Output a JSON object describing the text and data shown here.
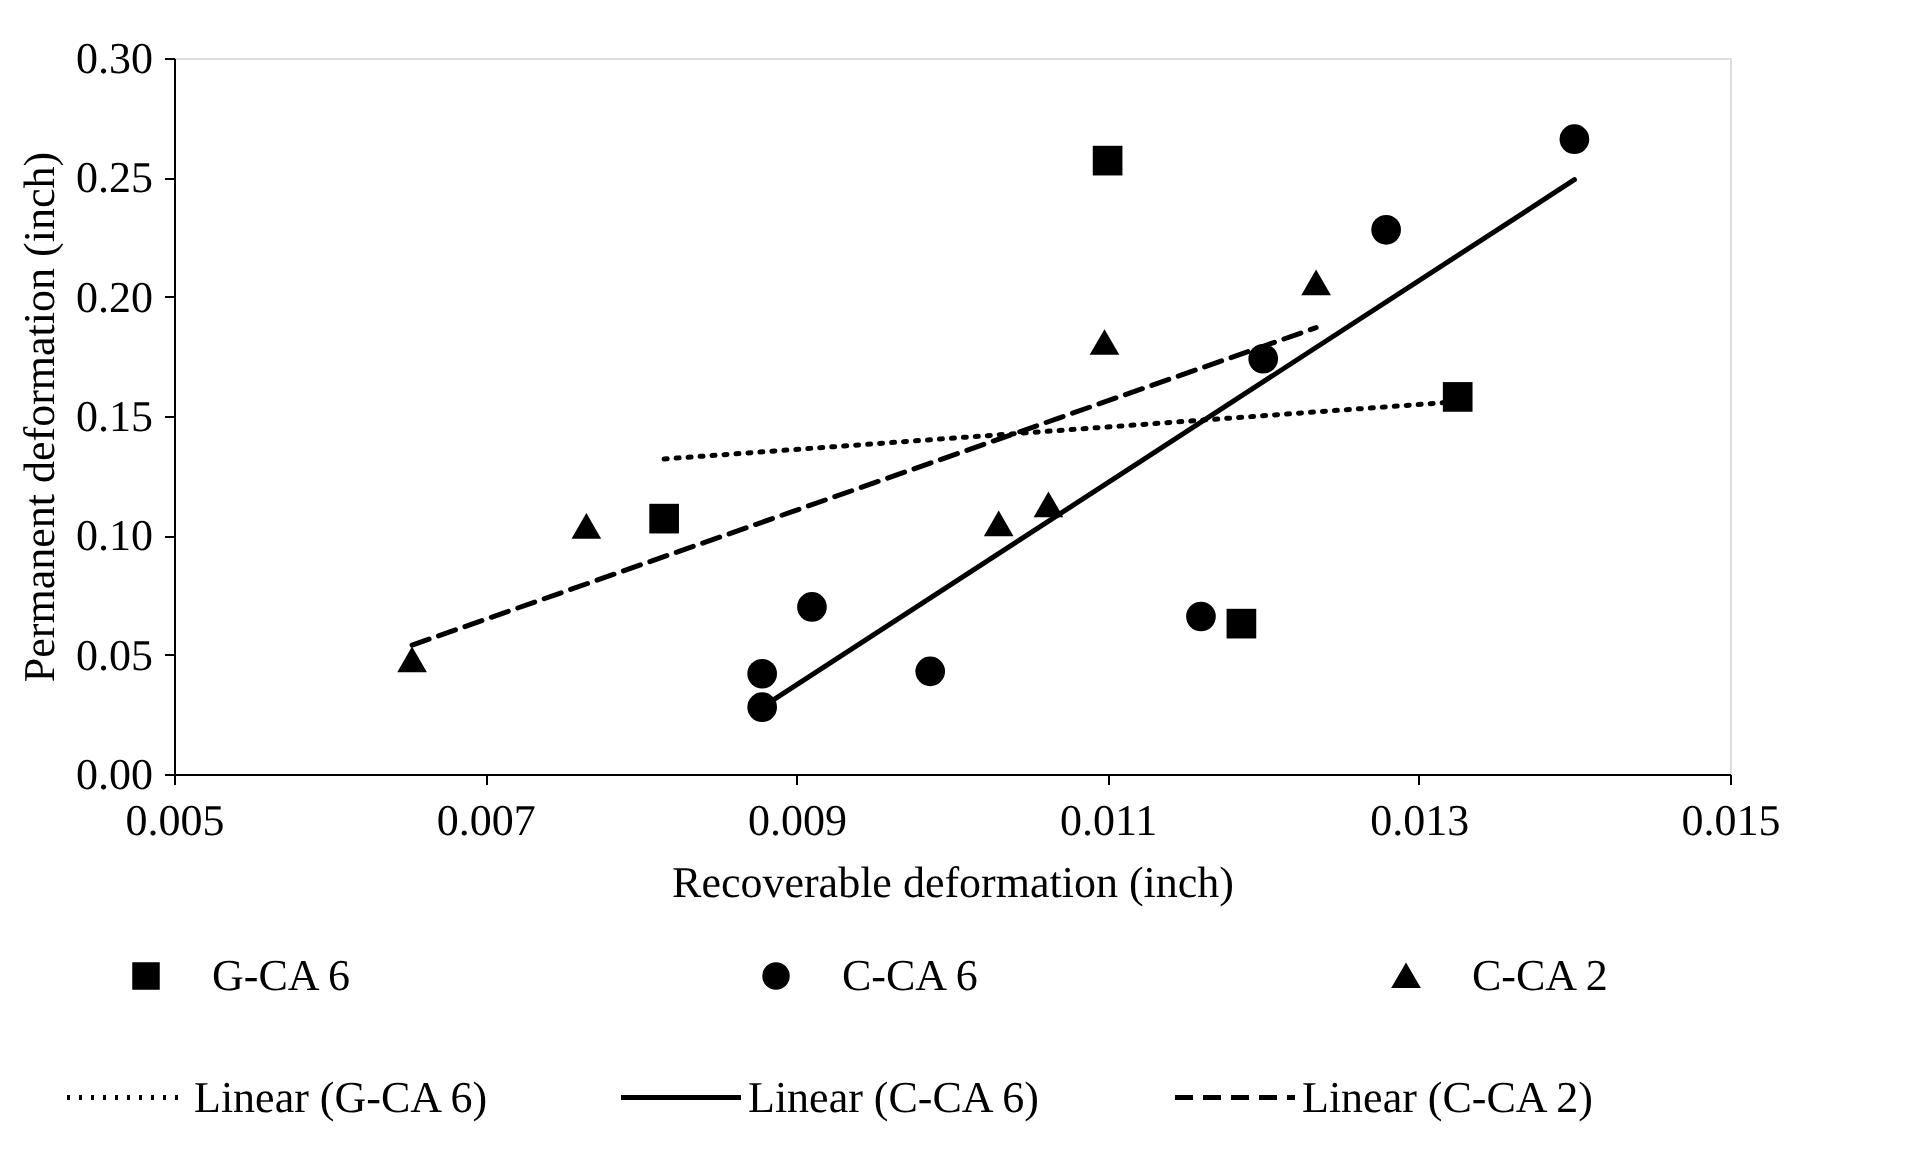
{
  "chart_data": {
    "type": "scatter",
    "xlabel": "Recoverable deformation (inch)",
    "ylabel": "Permanent deformation (inch)",
    "xlim": [
      0.005,
      0.015
    ],
    "xticks": [
      0.005,
      0.007,
      0.009,
      0.011,
      0.013,
      0.015
    ],
    "ylim": [
      0,
      0.3
    ],
    "yticks": [
      {
        "value": 0,
        "label": "0.00"
      },
      {
        "value": 0.05,
        "label": "0.05"
      },
      {
        "value": 0.1,
        "label": "0.10"
      },
      {
        "value": 0.15,
        "label": "0.15"
      },
      {
        "value": 0.2,
        "label": "0.20"
      },
      {
        "value": 0.25,
        "label": "0.25"
      },
      {
        "value": 0.3,
        "label": "0.30"
      }
    ],
    "grid": false,
    "legend": "bottom",
    "series": [
      {
        "name": "G-CA 6",
        "marker": "square",
        "color": "#000000",
        "x": [
          0.00815,
          0.011,
          0.01325,
          0.01186
        ],
        "values": [
          0.107,
          0.257,
          0.158,
          0.063
        ]
      },
      {
        "name": "C-CA 6",
        "marker": "circle",
        "color": "#000000",
        "x": [
          0.00878,
          0.00878,
          0.0091,
          0.00986,
          0.0116,
          0.012,
          0.01279,
          0.014
        ],
        "values": [
          0.042,
          0.028,
          0.07,
          0.043,
          0.066,
          0.174,
          0.228,
          0.266
        ]
      },
      {
        "name": "C-CA 2",
        "marker": "triangle",
        "color": "#000000",
        "x": [
          0.00653,
          0.00765,
          0.0103,
          0.01062,
          0.01098,
          0.01234
        ],
        "values": [
          0.048,
          0.104,
          0.105,
          0.113,
          0.181,
          0.206
        ]
      },
      {
        "name": "Linear (G-CA 6)",
        "type": "line",
        "line_style": "dotted",
        "color": "#000000",
        "x": [
          0.00815,
          0.01325
        ],
        "values": [
          0.132,
          0.156
        ]
      },
      {
        "name": "Linear (C-CA 6)",
        "type": "line",
        "line_style": "solid",
        "color": "#000000",
        "x": [
          0.00878,
          0.014
        ],
        "values": [
          0.028,
          0.249
        ]
      },
      {
        "name": "Linear (C-CA 2)",
        "type": "line",
        "line_style": "dashed",
        "color": "#000000",
        "x": [
          0.00653,
          0.01234
        ],
        "values": [
          0.054,
          0.187
        ]
      }
    ]
  }
}
